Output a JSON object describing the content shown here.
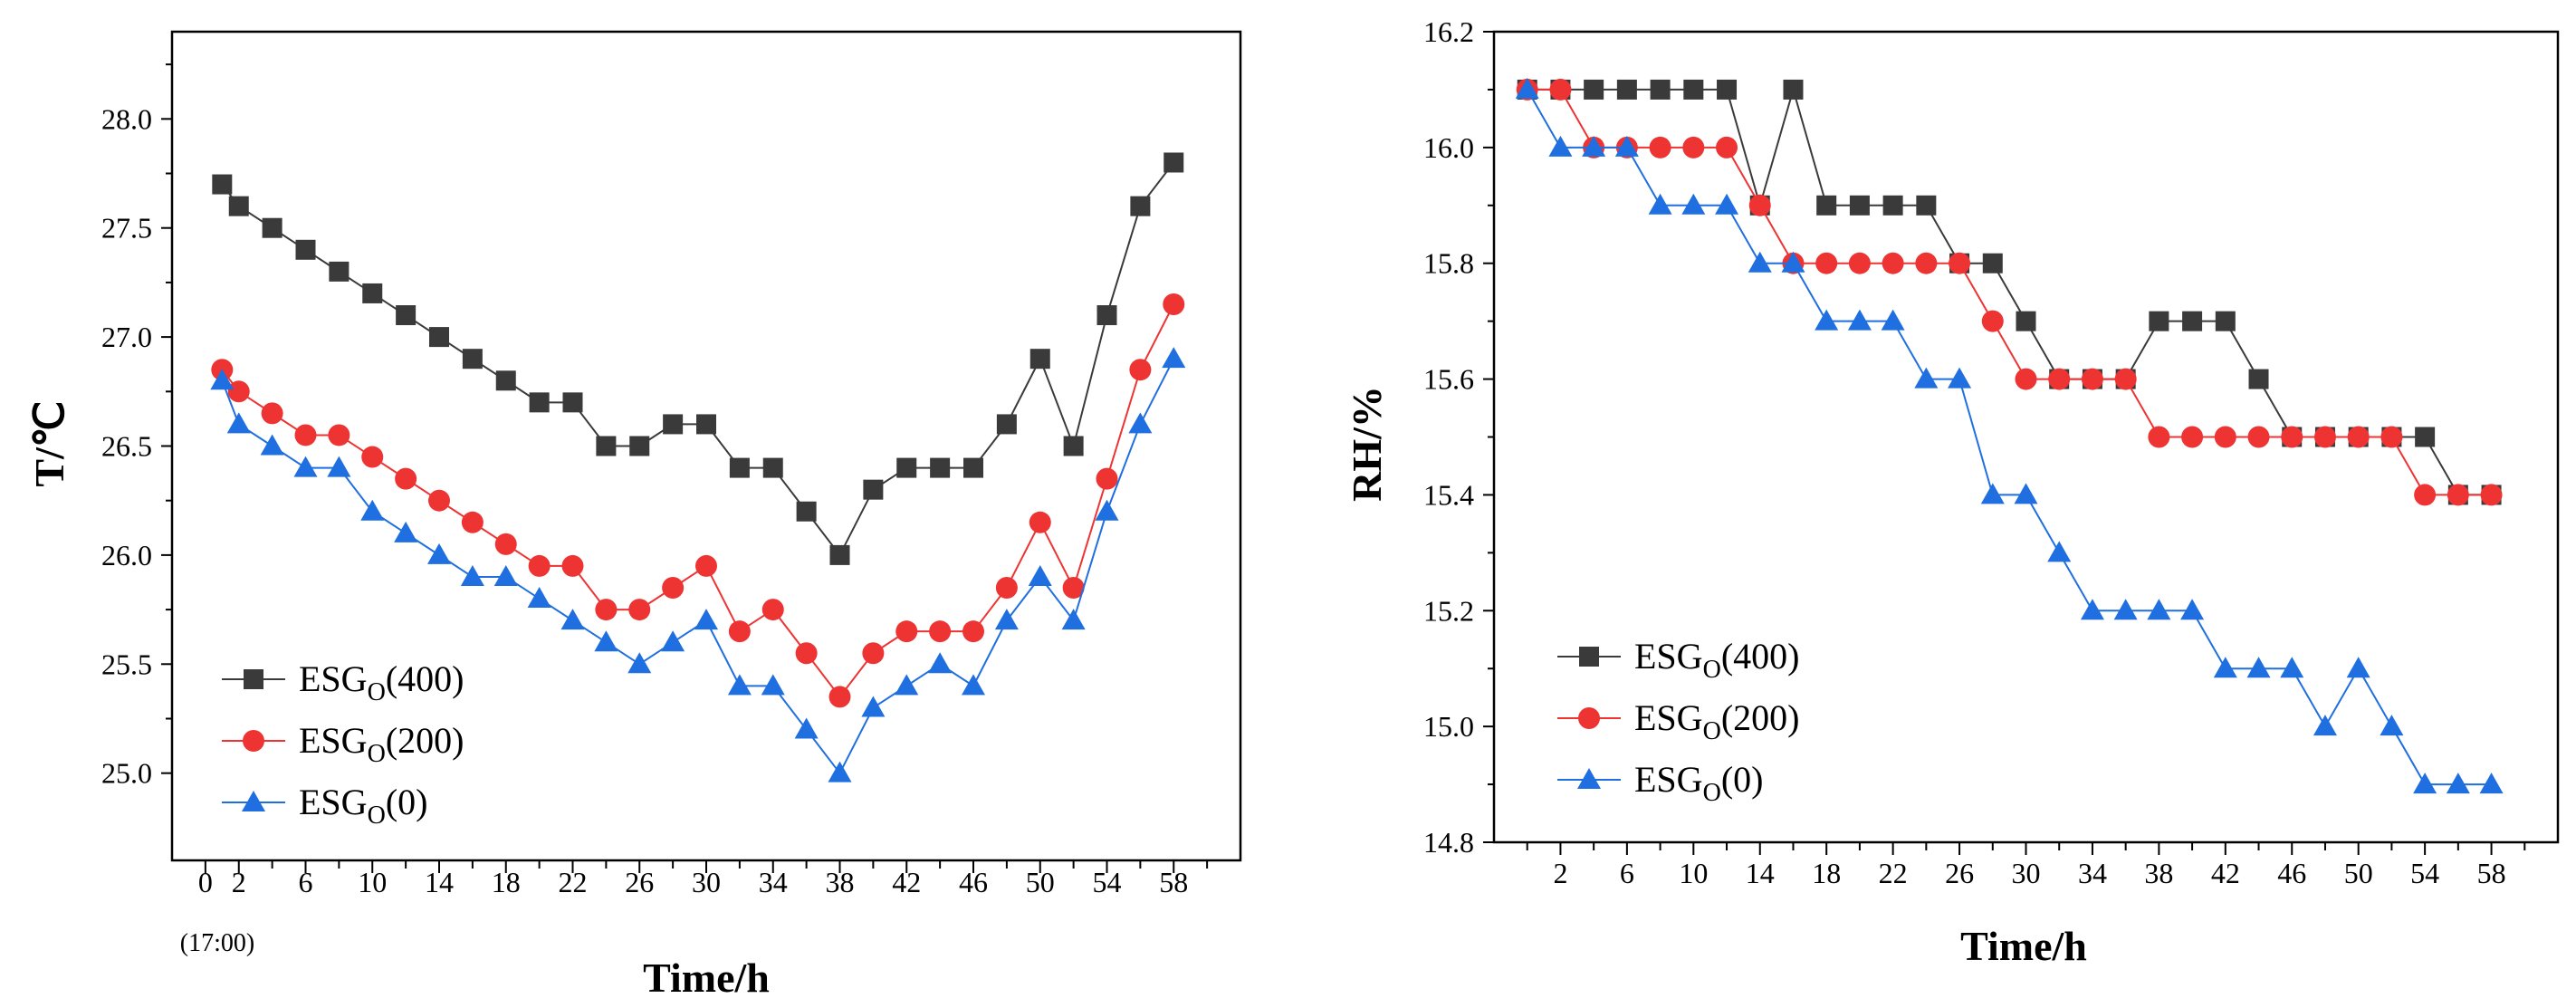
{
  "chart_data": [
    {
      "type": "line",
      "xlabel": "Time/h",
      "ylabel": "T/℃",
      "xlim": [
        -2,
        62
      ],
      "ylim": [
        24.6,
        28.4
      ],
      "xticks": [
        "0",
        "2",
        "6",
        "10",
        "14",
        "18",
        "22",
        "26",
        "30",
        "34",
        "38",
        "42",
        "46",
        "50",
        "54",
        "58"
      ],
      "x_zero_note": "(17:00)",
      "yticks": [
        "25.0",
        "25.5",
        "26.0",
        "26.5",
        "27.0",
        "27.5",
        "28.0"
      ],
      "x": [
        1,
        2,
        4,
        6,
        8,
        10,
        12,
        14,
        16,
        18,
        20,
        22,
        24,
        26,
        28,
        30,
        32,
        34,
        36,
        38,
        40,
        42,
        44,
        46,
        48,
        50,
        52,
        54,
        56,
        58
      ],
      "legend_position": "bottom-left",
      "series": [
        {
          "name": "ESG",
          "sub": "O",
          "suffix": "(400)",
          "color": "#3a3a3a",
          "marker": "square",
          "values": [
            27.7,
            27.6,
            27.5,
            27.4,
            27.3,
            27.2,
            27.1,
            27.0,
            26.9,
            26.8,
            26.7,
            26.7,
            26.5,
            26.5,
            26.6,
            26.6,
            26.4,
            26.4,
            26.2,
            26.0,
            26.3,
            26.4,
            26.4,
            26.4,
            26.6,
            26.9,
            26.5,
            27.1,
            27.6,
            27.8
          ]
        },
        {
          "name": "ESG",
          "sub": "O",
          "suffix": "(200)",
          "color": "#ee3333",
          "marker": "circle",
          "values": [
            26.85,
            26.75,
            26.65,
            26.55,
            26.55,
            26.45,
            26.35,
            26.25,
            26.15,
            26.05,
            25.95,
            25.95,
            25.75,
            25.75,
            25.85,
            25.95,
            25.65,
            25.75,
            25.55,
            25.35,
            25.55,
            25.65,
            25.65,
            25.65,
            25.85,
            26.15,
            25.85,
            26.35,
            26.85,
            27.15
          ]
        },
        {
          "name": "ESG",
          "sub": "O",
          "suffix": "(0)",
          "color": "#1f6fe0",
          "marker": "triangle",
          "values": [
            26.8,
            26.6,
            26.5,
            26.4,
            26.4,
            26.2,
            26.1,
            26.0,
            25.9,
            25.9,
            25.8,
            25.7,
            25.6,
            25.5,
            25.6,
            25.7,
            25.4,
            25.4,
            25.2,
            25.0,
            25.3,
            25.4,
            25.5,
            25.4,
            25.7,
            25.9,
            25.7,
            26.2,
            26.6,
            26.9
          ]
        }
      ]
    },
    {
      "type": "line",
      "xlabel": "Time/h",
      "ylabel": "RH/%",
      "xlim": [
        -2,
        62
      ],
      "ylim": [
        14.8,
        16.2
      ],
      "xticks": [
        "2",
        "6",
        "10",
        "14",
        "18",
        "22",
        "26",
        "30",
        "34",
        "38",
        "42",
        "46",
        "50",
        "54",
        "58"
      ],
      "yticks": [
        "14.8",
        "15.0",
        "15.2",
        "15.4",
        "15.6",
        "15.8",
        "16.0",
        "16.2"
      ],
      "x": [
        0,
        2,
        4,
        6,
        8,
        10,
        12,
        14,
        16,
        18,
        20,
        22,
        24,
        26,
        28,
        30,
        32,
        34,
        36,
        38,
        40,
        42,
        44,
        46,
        48,
        50,
        52,
        54,
        56,
        58
      ],
      "legend_position": "bottom-left",
      "series": [
        {
          "name": "ESG",
          "sub": "O",
          "suffix": "(400)",
          "color": "#3a3a3a",
          "marker": "square",
          "values": [
            16.1,
            16.1,
            16.1,
            16.1,
            16.1,
            16.1,
            16.1,
            15.9,
            16.1,
            15.9,
            15.9,
            15.9,
            15.9,
            15.8,
            15.8,
            15.7,
            15.6,
            15.6,
            15.6,
            15.7,
            15.7,
            15.7,
            15.6,
            15.5,
            15.5,
            15.5,
            15.5,
            15.5,
            15.4,
            15.4
          ]
        },
        {
          "name": "ESG",
          "sub": "O",
          "suffix": "(200)",
          "color": "#ee3333",
          "marker": "circle",
          "values": [
            16.1,
            16.1,
            16.0,
            16.0,
            16.0,
            16.0,
            16.0,
            15.9,
            15.8,
            15.8,
            15.8,
            15.8,
            15.8,
            15.8,
            15.7,
            15.6,
            15.6,
            15.6,
            15.6,
            15.5,
            15.5,
            15.5,
            15.5,
            15.5,
            15.5,
            15.5,
            15.5,
            15.4,
            15.4,
            15.4
          ]
        },
        {
          "name": "ESG",
          "sub": "O",
          "suffix": "(0)",
          "color": "#1f6fe0",
          "marker": "triangle",
          "values": [
            16.1,
            16.0,
            16.0,
            16.0,
            15.9,
            15.9,
            15.9,
            15.8,
            15.8,
            15.7,
            15.7,
            15.7,
            15.6,
            15.6,
            15.4,
            15.4,
            15.3,
            15.2,
            15.2,
            15.2,
            15.2,
            15.1,
            15.1,
            15.1,
            15.0,
            15.1,
            15.0,
            14.9,
            14.9,
            14.9
          ]
        }
      ]
    }
  ]
}
